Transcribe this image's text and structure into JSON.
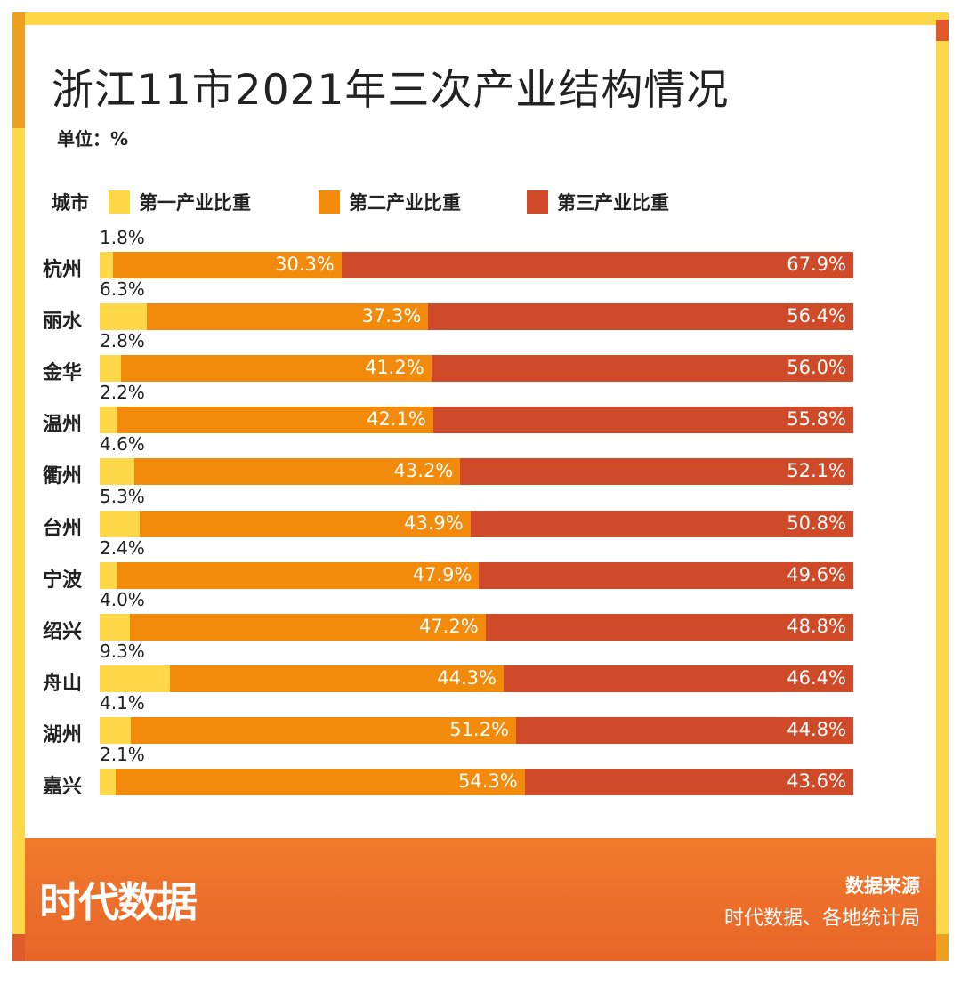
{
  "title": "浙江11市2021年三次产业结构情况",
  "unit": "单位：%",
  "legend": {
    "city_label": "城市",
    "primary": "第一产业比重",
    "secondary": "第二产业比重",
    "tertiary": "第三产业比重"
  },
  "colors": {
    "primary": "#ffd84a",
    "secondary": "#f28a0c",
    "tertiary": "#cf4a28"
  },
  "chart_data": {
    "type": "bar",
    "orientation": "horizontal",
    "stacked": true,
    "categories": [
      "杭州",
      "丽水",
      "金华",
      "温州",
      "衢州",
      "台州",
      "宁波",
      "绍兴",
      "舟山",
      "湖州",
      "嘉兴"
    ],
    "series": [
      {
        "name": "第一产业比重",
        "values": [
          1.8,
          6.3,
          2.8,
          2.2,
          4.6,
          5.3,
          2.4,
          4.0,
          9.3,
          4.1,
          2.1
        ],
        "labels": [
          "1.8%",
          "6.3%",
          "2.8%",
          "2.2%",
          "4.6%",
          "5.3%",
          "2.4%",
          "4.0%",
          "9.3%",
          "4.1%",
          "2.1%"
        ]
      },
      {
        "name": "第二产业比重",
        "values": [
          30.3,
          37.3,
          41.2,
          42.1,
          43.2,
          43.9,
          47.9,
          47.2,
          44.3,
          51.2,
          54.3
        ],
        "labels": [
          "30.3%",
          "37.3%",
          "41.2%",
          "42.1%",
          "43.2%",
          "43.9%",
          "47.9%",
          "47.2%",
          "44.3%",
          "51.2%",
          "54.3%"
        ]
      },
      {
        "name": "第三产业比重",
        "values": [
          67.9,
          56.4,
          56.0,
          55.8,
          52.1,
          50.8,
          49.6,
          48.8,
          46.4,
          44.8,
          43.6
        ],
        "labels": [
          "67.9%",
          "56.4%",
          "56.0%",
          "55.8%",
          "52.1%",
          "50.8%",
          "49.6%",
          "48.8%",
          "46.4%",
          "44.8%",
          "43.6%"
        ]
      }
    ],
    "title": "浙江11市2021年三次产业结构情况",
    "xlabel": "",
    "ylabel": "城市",
    "xlim": [
      0,
      100
    ],
    "legend_position": "top"
  },
  "footer": {
    "brand": "时代数据",
    "source_title": "数据来源",
    "source_text": "时代数据、各地统计局"
  }
}
